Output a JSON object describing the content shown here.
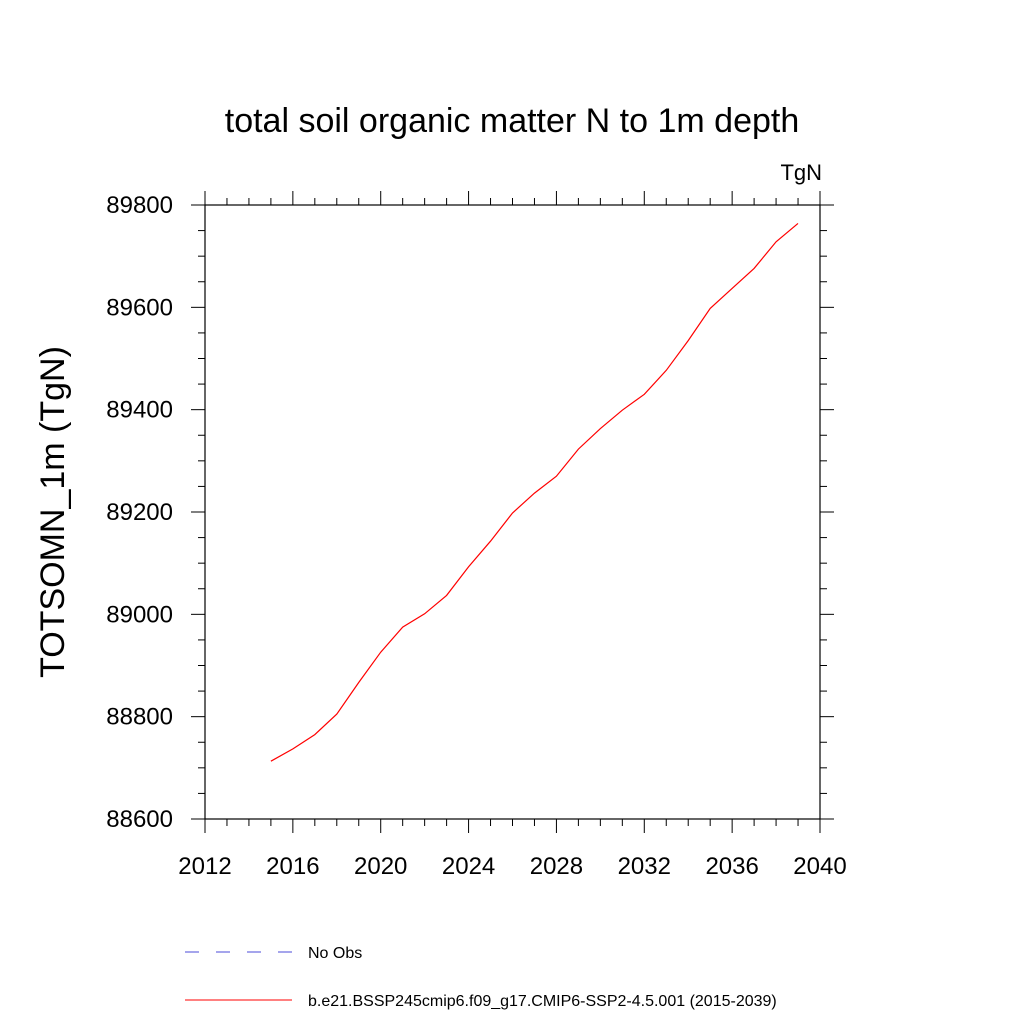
{
  "chart_data": {
    "type": "line",
    "title": "total soil organic matter N to 1m depth",
    "units_label": "TgN",
    "xlabel": "",
    "ylabel": "TOTSOMN_1m  (TgN)",
    "xlim": [
      2012,
      2040
    ],
    "ylim": [
      88600,
      89800
    ],
    "x_ticks": [
      2012,
      2016,
      2020,
      2024,
      2028,
      2032,
      2036,
      2040
    ],
    "y_ticks": [
      88600,
      88800,
      89000,
      89200,
      89400,
      89600,
      89800
    ],
    "grid": false,
    "series": [
      {
        "name": "b.e21.BSSP245cmip6.f09_g17.CMIP6-SSP2-4.5.001 (2015-2039)",
        "color": "#ff0000",
        "style": "solid",
        "x": [
          2015,
          2016,
          2017,
          2018,
          2019,
          2020,
          2021,
          2022,
          2023,
          2024,
          2025,
          2026,
          2027,
          2028,
          2029,
          2030,
          2031,
          2032,
          2033,
          2034,
          2035,
          2036,
          2037,
          2038,
          2039
        ],
        "y": [
          88713,
          88737,
          88765,
          88805,
          88867,
          88926,
          88975,
          89001,
          89037,
          89093,
          89143,
          89198,
          89237,
          89270,
          89323,
          89363,
          89399,
          89430,
          89477,
          89535,
          89598,
          89637,
          89676,
          89728,
          89764
        ]
      }
    ],
    "legend": [
      {
        "label": "No Obs",
        "color": "#4b4bd8",
        "style": "dashed"
      },
      {
        "label": "b.e21.BSSP245cmip6.f09_g17.CMIP6-SSP2-4.5.001 (2015-2039)",
        "color": "#ff0000",
        "style": "solid"
      }
    ],
    "legend_position": "bottom"
  }
}
